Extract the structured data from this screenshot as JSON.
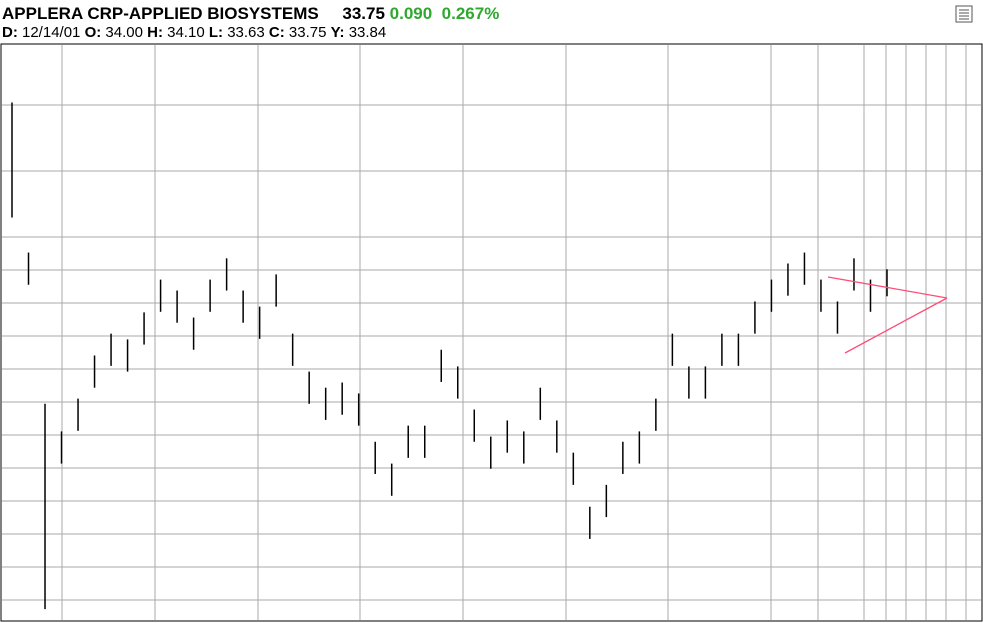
{
  "chart_data": {
    "type": "ohlc",
    "title": "APPLERA CRP-APPLIED BIOSYSTEMS",
    "last": "33.75",
    "change": "0.090",
    "change_pct": "0.267%",
    "quote": [
      {
        "label": "D:",
        "value": "12/14/01"
      },
      {
        "label": "O:",
        "value": "34.00"
      },
      {
        "label": "H:",
        "value": "34.10"
      },
      {
        "label": "L:",
        "value": "33.63"
      },
      {
        "label": "C:",
        "value": "33.75"
      },
      {
        "label": "Y:",
        "value": "33.84"
      }
    ],
    "color": "#000000",
    "grid": true,
    "ylim": [
      28,
      38
    ],
    "high": [
      37.0,
      34.39,
      31.76,
      31.28,
      31.85,
      32.6,
      32.98,
      32.88,
      33.35,
      33.92,
      33.73,
      33.26,
      33.92,
      34.29,
      33.73,
      33.45,
      34.01,
      32.98,
      32.32,
      32.04,
      32.13,
      31.94,
      31.1,
      30.72,
      31.38,
      31.38,
      32.7,
      32.41,
      31.66,
      31.19,
      31.47,
      31.28,
      32.04,
      31.47,
      30.91,
      29.97,
      30.35,
      31.1,
      31.28,
      31.85,
      32.98,
      32.41,
      32.41,
      32.98,
      32.98,
      33.54,
      33.92,
      34.2,
      34.39,
      33.92,
      33.54,
      34.29,
      33.92,
      34.1
    ],
    "low": [
      35.0,
      33.83,
      28.19,
      30.72,
      31.29,
      32.04,
      32.42,
      32.32,
      32.79,
      33.36,
      33.17,
      32.7,
      33.36,
      33.73,
      33.17,
      32.89,
      33.45,
      32.42,
      31.76,
      31.48,
      31.57,
      31.38,
      30.54,
      30.16,
      30.82,
      30.82,
      32.14,
      31.85,
      31.1,
      30.63,
      30.91,
      30.72,
      31.48,
      30.91,
      30.35,
      29.41,
      29.79,
      30.54,
      30.72,
      31.29,
      32.42,
      31.85,
      31.85,
      32.42,
      32.42,
      32.98,
      33.36,
      33.64,
      33.83,
      33.36,
      32.98,
      33.73,
      33.36,
      33.63
    ]
  }
}
